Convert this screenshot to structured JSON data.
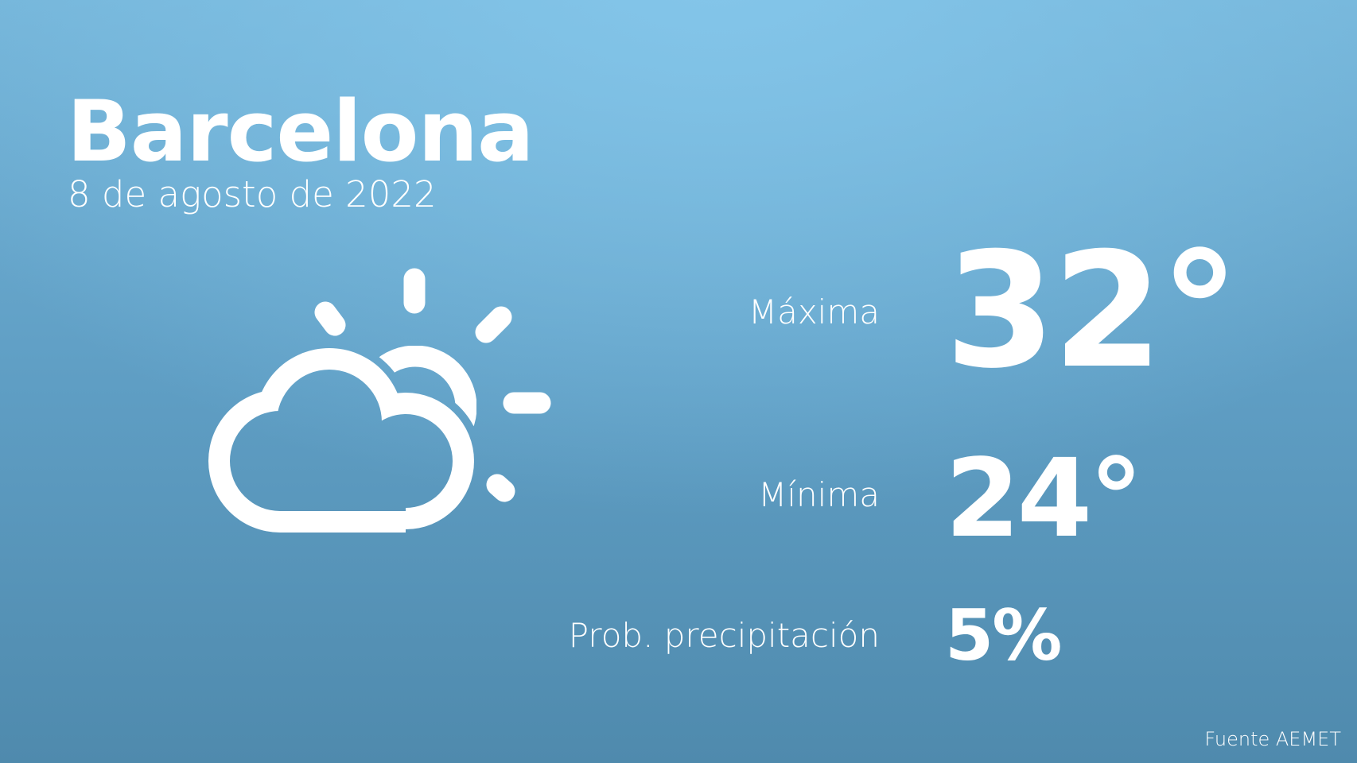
{
  "city": "Barcelona",
  "date": "8 de agosto de 2022",
  "weather_icon": "partly-cloudy-icon",
  "max": {
    "label": "Máxima",
    "value": "32°"
  },
  "min": {
    "label": "Mínima",
    "value": "24°"
  },
  "precip": {
    "label": "Prob. precipitación",
    "value": "5%"
  },
  "source": "Fuente AEMET",
  "colors": {
    "background_top": "#84c6ea",
    "background_bottom": "#4f8aad",
    "text": "#ffffff"
  }
}
